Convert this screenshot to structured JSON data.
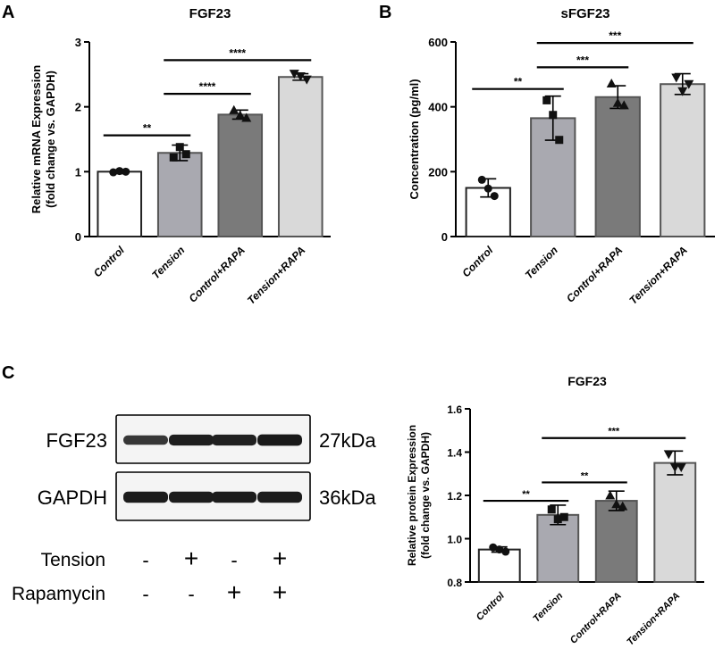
{
  "panels": {
    "A": {
      "letter": "A",
      "chart_data": {
        "type": "bar",
        "title": "FGF23",
        "ylabel_line1": "Relative mRNA Expression",
        "ylabel_line2": "(fold change vs. GAPDH)",
        "categories": [
          "Control",
          "Tension",
          "Control+RAPA",
          "Tension+RAPA"
        ],
        "values": [
          1.0,
          1.29,
          1.88,
          2.46
        ],
        "errors": [
          0.03,
          0.12,
          0.07,
          0.05
        ],
        "points": [
          [
            0.99,
            1.01,
            1.0
          ],
          [
            1.22,
            1.38,
            1.27
          ],
          [
            1.95,
            1.87,
            1.83
          ],
          [
            2.51,
            2.47,
            2.42
          ]
        ],
        "marker": "tri",
        "ylim": [
          0,
          3
        ],
        "yticks": [
          "0",
          "1",
          "2",
          "3"
        ],
        "fills": [
          "#ffffff",
          "#a9a9b0",
          "#7a7a7a",
          "#d9d9d9"
        ],
        "sig": [
          {
            "from": 0,
            "to": 1,
            "label": "**",
            "y": 1.56
          },
          {
            "from": 1,
            "to": 2,
            "label": "****",
            "y": 2.2
          },
          {
            "from": 1,
            "to": 3,
            "label": "****",
            "y": 2.72
          }
        ]
      }
    },
    "B": {
      "letter": "B",
      "chart_data": {
        "type": "bar",
        "title": "sFGF23",
        "ylabel_line1": "Concentration (pg/ml)",
        "ylabel_line2": "",
        "categories": [
          "Control",
          "Tension",
          "Control+RAPA",
          "Tension+RAPA"
        ],
        "values": [
          150,
          365,
          430,
          470
        ],
        "errors": [
          28,
          68,
          35,
          32
        ],
        "points": [
          [
            175,
            148,
            125
          ],
          [
            420,
            375,
            298
          ],
          [
            472,
            412,
            405
          ],
          [
            490,
            448,
            470
          ]
        ],
        "marker": "tri",
        "ylim": [
          0,
          600
        ],
        "yticks": [
          "0",
          "200",
          "400",
          "600"
        ],
        "fills": [
          "#ffffff",
          "#a9a9b0",
          "#7a7a7a",
          "#d9d9d9"
        ],
        "sig": [
          {
            "from": 0,
            "to": 1,
            "label": "**",
            "y": 455
          },
          {
            "from": 1,
            "to": 2,
            "label": "***",
            "y": 522
          },
          {
            "from": 1,
            "to": 3,
            "label": "***",
            "y": 597
          }
        ]
      }
    },
    "C": {
      "letter": "C",
      "blot": {
        "bands": [
          {
            "name": "FGF23",
            "size": "27kDa",
            "intensity": [
              0.65,
              0.9,
              0.88,
              0.95
            ]
          },
          {
            "name": "GAPDH",
            "size": "36kDa",
            "intensity": [
              0.92,
              0.92,
              0.92,
              0.92
            ]
          }
        ],
        "conditions": [
          {
            "name": "Tension",
            "signs": [
              "-",
              "+",
              "-",
              "+"
            ]
          },
          {
            "name": "Rapamycin",
            "signs": [
              "-",
              "-",
              "+",
              "+"
            ]
          }
        ]
      },
      "chart_data": {
        "type": "bar",
        "title": "FGF23",
        "ylabel_line1": "Relative protein Expression",
        "ylabel_line2": "(fold change vs. GAPDH)",
        "categories": [
          "Control",
          "Tension",
          "Control+RAPA",
          "Tension+RAPA"
        ],
        "values": [
          0.95,
          1.11,
          1.175,
          1.35
        ],
        "errors": [
          0.012,
          0.045,
          0.045,
          0.055
        ],
        "points": [
          [
            0.96,
            0.95,
            0.94
          ],
          [
            1.135,
            1.09,
            1.1
          ],
          [
            1.2,
            1.16,
            1.15
          ],
          [
            1.39,
            1.33,
            1.33
          ]
        ],
        "marker": "tri",
        "ylim": [
          0.8,
          1.6
        ],
        "yticks": [
          "0.8",
          "1.0",
          "1.2",
          "1.4",
          "1.6"
        ],
        "fills": [
          "#ffffff",
          "#a9a9b0",
          "#7a7a7a",
          "#d9d9d9"
        ],
        "sig": [
          {
            "from": 0,
            "to": 1,
            "label": "**",
            "y": 1.175
          },
          {
            "from": 1,
            "to": 2,
            "label": "**",
            "y": 1.26
          },
          {
            "from": 1,
            "to": 3,
            "label": "***",
            "y": 1.465
          }
        ]
      }
    }
  }
}
